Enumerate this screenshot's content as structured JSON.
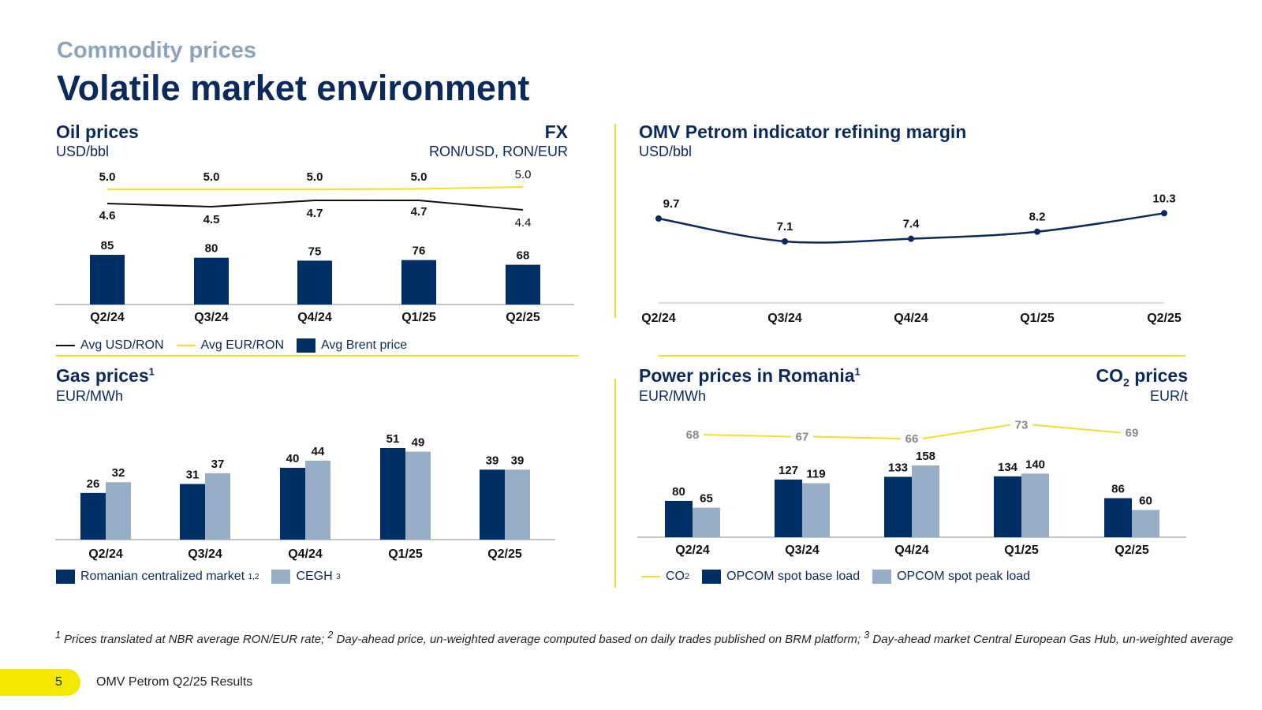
{
  "header": {
    "section": "Commodity prices",
    "title": "Volatile market environment"
  },
  "oil_panel": {
    "title": "Oil prices",
    "unit": "USD/bbl",
    "fx_title": "FX",
    "fx_unit": "RON/USD, RON/EUR",
    "legend": [
      "Avg USD/RON",
      "Avg EUR/RON",
      "Avg Brent price"
    ]
  },
  "refining_panel": {
    "title": "OMV Petrom indicator refining margin",
    "unit": "USD/bbl"
  },
  "gas_panel": {
    "title": "Gas prices",
    "title_sup": "1",
    "unit": "EUR/MWh",
    "legend": [
      {
        "label": "Romanian centralized market",
        "sup": "1,2"
      },
      {
        "label": "CEGH",
        "sup": "3"
      }
    ]
  },
  "power_panel": {
    "title": "Power prices in Romania",
    "title_sup": "1",
    "unit": "EUR/MWh",
    "co2_title": "CO",
    "co2_sub": "2",
    "co2_title_rest": " prices",
    "co2_unit": "EUR/t",
    "legend": [
      {
        "label": "CO",
        "sub": "2"
      },
      {
        "label": "OPCOM spot base load"
      },
      {
        "label": "OPCOM spot peak load"
      }
    ]
  },
  "colors": {
    "navy": "#0b2a5b",
    "bar_navy": "#002f66",
    "light_blue": "#98aec6",
    "yellow": "#f5dc2a",
    "black": "#111111",
    "gray_label": "#888888"
  },
  "chart_data": [
    {
      "id": "oil",
      "type": "bar+line",
      "title": "Oil prices",
      "categories": [
        "Q2/24",
        "Q3/24",
        "Q4/24",
        "Q1/25",
        "Q2/25"
      ],
      "series": [
        {
          "name": "Avg Brent price",
          "kind": "bar",
          "values": [
            85,
            80,
            75,
            76,
            68
          ]
        },
        {
          "name": "Avg USD/RON",
          "kind": "line",
          "values": [
            4.6,
            4.5,
            4.7,
            4.7,
            4.4
          ]
        },
        {
          "name": "Avg EUR/RON",
          "kind": "line",
          "values": [
            5.0,
            5.0,
            5.0,
            5.0,
            5.0
          ]
        }
      ]
    },
    {
      "id": "refining",
      "type": "line",
      "title": "OMV Petrom indicator refining margin",
      "categories": [
        "Q2/24",
        "Q3/24",
        "Q4/24",
        "Q1/25",
        "Q2/25"
      ],
      "series": [
        {
          "name": "Refining margin",
          "values": [
            9.7,
            7.1,
            7.4,
            8.2,
            10.3
          ]
        }
      ]
    },
    {
      "id": "gas",
      "type": "bar",
      "title": "Gas prices",
      "categories": [
        "Q2/24",
        "Q3/24",
        "Q4/24",
        "Q1/25",
        "Q2/25"
      ],
      "series": [
        {
          "name": "Romanian centralized market",
          "values": [
            26,
            31,
            40,
            51,
            39
          ]
        },
        {
          "name": "CEGH",
          "values": [
            32,
            37,
            44,
            49,
            39
          ]
        }
      ]
    },
    {
      "id": "power",
      "type": "bar+line",
      "title": "Power prices in Romania",
      "categories": [
        "Q2/24",
        "Q3/24",
        "Q4/24",
        "Q1/25",
        "Q2/25"
      ],
      "series": [
        {
          "name": "OPCOM spot base load",
          "kind": "bar",
          "values": [
            80,
            127,
            133,
            134,
            86
          ]
        },
        {
          "name": "OPCOM spot peak load",
          "kind": "bar",
          "values": [
            65,
            119,
            158,
            140,
            60
          ]
        },
        {
          "name": "CO2",
          "kind": "line",
          "values": [
            68,
            67,
            66,
            73,
            69
          ]
        }
      ]
    }
  ],
  "footnote": {
    "m1": "1",
    "t1": " Prices translated at NBR average RON/EUR rate; ",
    "m2": "2",
    "t2": " Day-ahead price, un-weighted average computed based on daily trades published on BRM platform; ",
    "m3": "3",
    "t3": " Day-ahead market Central European Gas Hub, un-weighted average"
  },
  "footer": {
    "page": "5",
    "label": "OMV Petrom Q2/25 Results"
  }
}
